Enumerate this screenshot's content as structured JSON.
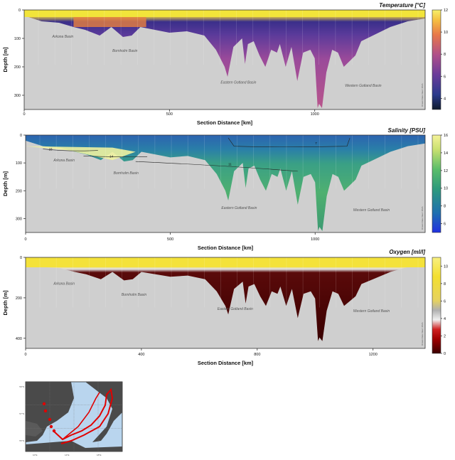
{
  "credit": "Ocean Data View / DIVA",
  "chart_data": [
    {
      "type": "heatmap",
      "variable": "temperature",
      "title": "Temperature [°C]",
      "xlabel": "Section Distance [km]",
      "ylabel": "Depth [m]",
      "xlim": [
        0,
        1380
      ],
      "ylim": [
        350,
        0
      ],
      "x_ticks": [
        "0",
        "500",
        "1000"
      ],
      "y_ticks": [
        "0",
        "100",
        "200",
        "300"
      ],
      "colorbar": {
        "ticks": [
          "4",
          "6",
          "8",
          "10",
          "12"
        ],
        "range": [
          3,
          12
        ]
      },
      "basins": [
        "Arkona Basin",
        "Bornholm Basin",
        "Eastern Gotland Basin",
        "Western Gotland Basin"
      ],
      "bottom_profile": {
        "x": [
          0,
          60,
          120,
          170,
          210,
          260,
          300,
          340,
          370,
          400,
          450,
          500,
          560,
          620,
          660,
          690,
          700,
          720,
          750,
          760,
          770,
          790,
          810,
          830,
          850,
          870,
          880,
          900,
          920,
          940,
          960,
          985,
          1000,
          1010,
          1015,
          1025,
          1040,
          1060,
          1080,
          1100,
          1120,
          1140,
          1160,
          1200,
          1260,
          1320,
          1380
        ],
        "depth": [
          20,
          40,
          45,
          60,
          70,
          90,
          60,
          95,
          90,
          60,
          70,
          80,
          75,
          90,
          140,
          200,
          235,
          130,
          100,
          190,
          120,
          110,
          160,
          200,
          140,
          150,
          120,
          200,
          130,
          250,
          150,
          140,
          170,
          345,
          330,
          345,
          220,
          140,
          150,
          200,
          180,
          160,
          110,
          90,
          60,
          40,
          30
        ]
      }
    },
    {
      "type": "heatmap",
      "variable": "salinity",
      "title": "Salinity [PSU]",
      "xlabel": "Section Distance [km]",
      "ylabel": "Depth [m]",
      "xlim": [
        0,
        1380
      ],
      "ylim": [
        350,
        0
      ],
      "x_ticks": [
        "0",
        "500",
        "1000"
      ],
      "y_ticks": [
        "0",
        "100",
        "200",
        "300"
      ],
      "colorbar": {
        "ticks": [
          "6",
          "8",
          "10",
          "12",
          "14",
          "16"
        ],
        "range": [
          5,
          16
        ]
      },
      "isohaline_labels": [
        "15",
        "14",
        "11",
        "7"
      ],
      "basins": [
        "Arkona Basin",
        "Bornholm Basin",
        "Eastern Gotland Basin",
        "Western Gotland Basin"
      ]
    },
    {
      "type": "heatmap",
      "variable": "oxygen",
      "title": "Oxygen [ml/l]",
      "xlabel": "Section Distance [km]",
      "ylabel": "Depth [m]",
      "xlim": [
        0,
        1380
      ],
      "ylim": [
        450,
        0
      ],
      "x_ticks": [
        "0",
        "400",
        "800",
        "1200"
      ],
      "y_ticks": [
        "0",
        "200",
        "400"
      ],
      "colorbar": {
        "ticks": [
          "0",
          "2",
          "4",
          "6",
          "8",
          "10"
        ],
        "range": [
          0,
          11
        ]
      },
      "basins": [
        "Arkona Basin",
        "Bornholm Basin",
        "Eastern Gotland Basin",
        "Western Gotland Basin"
      ]
    }
  ],
  "map": {
    "lat_labels": [
      "59°N",
      "57°N",
      "55°N"
    ],
    "lon_labels": [
      "10°E",
      "14°E",
      "18°E"
    ]
  }
}
